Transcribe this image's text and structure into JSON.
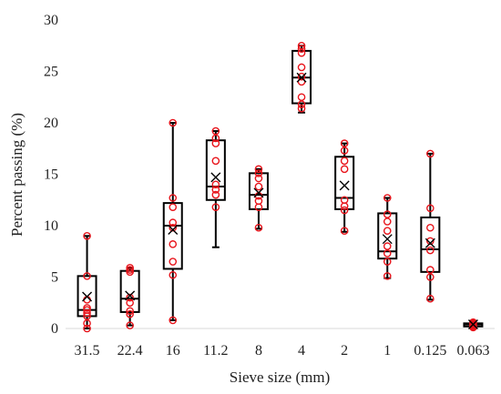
{
  "chart_data": {
    "type": "box",
    "title": "",
    "xlabel": "Sieve size (mm)",
    "ylabel": "Percent passing (%)",
    "ylim": [
      0,
      30
    ],
    "yticks": [
      0,
      5,
      10,
      15,
      20,
      25,
      30
    ],
    "grid": false,
    "legend": "none",
    "colors": {
      "box": "#000000",
      "points": "#e8141b"
    },
    "categories": [
      "31.5",
      "22.4",
      "16",
      "11.2",
      "8",
      "4",
      "2",
      "1",
      "0.125",
      "0.063"
    ],
    "boxes": [
      {
        "category": "31.5",
        "min": 0.0,
        "q1": 1.2,
        "median": 1.8,
        "q3": 5.1,
        "max": 9.0,
        "mean": 3.1,
        "points": [
          0.0,
          0.5,
          1.2,
          1.5,
          1.8,
          2.0,
          2.8,
          5.1,
          9.0
        ]
      },
      {
        "category": "22.4",
        "min": 0.3,
        "q1": 1.6,
        "median": 2.9,
        "q3": 5.6,
        "max": 5.9,
        "mean": 3.2,
        "points": [
          0.3,
          1.4,
          1.7,
          2.5,
          3.0,
          5.5,
          5.7,
          5.9
        ]
      },
      {
        "category": "16",
        "min": 0.8,
        "q1": 5.8,
        "median": 10.0,
        "q3": 12.2,
        "max": 20.0,
        "mean": 9.6,
        "points": [
          0.8,
          5.2,
          6.5,
          8.2,
          9.8,
          10.3,
          11.8,
          12.7,
          20.0
        ]
      },
      {
        "category": "11.2",
        "min": 7.9,
        "q1": 12.5,
        "median": 13.8,
        "q3": 18.3,
        "max": 19.2,
        "mean": 14.7,
        "points": [
          11.8,
          13.0,
          13.5,
          14.0,
          16.3,
          18.0,
          18.5,
          19.2
        ]
      },
      {
        "category": "8",
        "min": 9.7,
        "q1": 11.6,
        "median": 13.0,
        "q3": 15.1,
        "max": 15.5,
        "mean": 13.2,
        "points": [
          9.8,
          11.8,
          12.4,
          12.9,
          13.8,
          14.6,
          15.1,
          15.5
        ]
      },
      {
        "category": "4",
        "min": 21.0,
        "q1": 21.9,
        "median": 24.4,
        "q3": 27.0,
        "max": 27.5,
        "mean": 24.4,
        "points": [
          21.4,
          21.8,
          22.5,
          24.0,
          24.5,
          25.4,
          26.8,
          27.2,
          27.5
        ]
      },
      {
        "category": "2",
        "min": 9.4,
        "q1": 11.6,
        "median": 12.7,
        "q3": 16.7,
        "max": 18.0,
        "mean": 13.9,
        "points": [
          9.5,
          11.5,
          11.9,
          12.5,
          15.5,
          16.3,
          17.3,
          18.0
        ]
      },
      {
        "category": "1",
        "min": 4.9,
        "q1": 6.8,
        "median": 7.5,
        "q3": 11.2,
        "max": 12.7,
        "mean": 8.7,
        "points": [
          5.1,
          6.5,
          7.3,
          8.0,
          9.5,
          10.4,
          11.1,
          12.7
        ]
      },
      {
        "category": "0.125",
        "min": 2.8,
        "q1": 5.5,
        "median": 7.7,
        "q3": 10.8,
        "max": 17.0,
        "mean": 8.3,
        "points": [
          2.9,
          5.0,
          5.7,
          7.6,
          8.5,
          9.8,
          11.7,
          17.0
        ]
      },
      {
        "category": "0.063",
        "min": 0.1,
        "q1": 0.2,
        "median": 0.4,
        "q3": 0.5,
        "max": 0.6,
        "mean": 0.4,
        "points": [
          0.1,
          0.2,
          0.3,
          0.4,
          0.5,
          0.6
        ]
      }
    ]
  }
}
